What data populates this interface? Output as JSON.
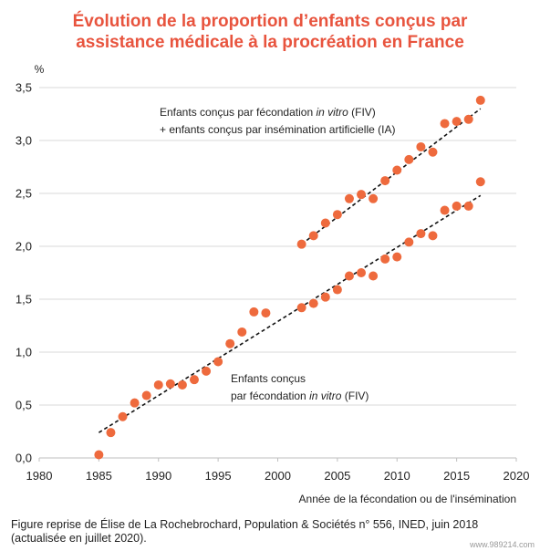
{
  "title_line1": "Évolution de la proportion d’enfants conçus par",
  "title_line2": "assistance médicale à la procréation en France",
  "source_line1": "Figure reprise de Élise de La Rochebrochard, Population & Sociétés n° 556, INED, juin 2018",
  "source_line2": "(actualisée en juillet 2020).",
  "watermark": "www.989214.com",
  "colors": {
    "title": "#e8543e",
    "points": "#ee6a3d",
    "trend": "#111111"
  },
  "chart_data": {
    "type": "scatter",
    "title": "Évolution de la proportion d’enfants conçus par assistance médicale à la procréation en France",
    "ylabel": "%",
    "xlabel": "Année de la fécondation ou de l'insémination",
    "xlim": [
      1980,
      2020
    ],
    "ylim": [
      0,
      3.5
    ],
    "xticks": [
      1980,
      1985,
      1990,
      1995,
      2000,
      2005,
      2010,
      2015,
      2020
    ],
    "yticks": [
      "0,0",
      "0,5",
      "1,0",
      "1,5",
      "2,0",
      "2,5",
      "3,0",
      "3,5"
    ],
    "grid": true,
    "series": [
      {
        "label_line1": "Enfants conçus",
        "label_line2_pre": "par fécondation ",
        "label_line2_ital": "in vitro",
        "label_line2_post": " (FIV)",
        "x": [
          1985,
          1986,
          1987,
          1988,
          1989,
          1990,
          1991,
          1992,
          1993,
          1994,
          1995,
          1996,
          1997,
          1998,
          1999,
          2002,
          2003,
          2004,
          2005,
          2006,
          2007,
          2008,
          2009,
          2010,
          2011,
          2012,
          2013,
          2014,
          2015,
          2016,
          2017
        ],
        "y": [
          0.03,
          0.24,
          0.39,
          0.52,
          0.59,
          0.69,
          0.7,
          0.69,
          0.74,
          0.82,
          0.91,
          1.08,
          1.19,
          1.38,
          1.37,
          1.42,
          1.46,
          1.52,
          1.59,
          1.72,
          1.75,
          1.72,
          1.88,
          1.9,
          2.04,
          2.12,
          2.1,
          2.34,
          2.38,
          2.38,
          2.61
        ],
        "trend": [
          [
            1985,
            0.24
          ],
          [
            2017,
            2.48
          ]
        ]
      },
      {
        "label_line1_pre": "Enfants conçus par fécondation ",
        "label_line1_ital": "in vitro",
        "label_line1_post": " (FIV)",
        "label_line2": "+ enfants conçus par insémination artificielle (IA)",
        "x": [
          2002,
          2003,
          2004,
          2005,
          2006,
          2007,
          2008,
          2009,
          2010,
          2011,
          2012,
          2013,
          2014,
          2015,
          2016,
          2017
        ],
        "y": [
          2.02,
          2.1,
          2.22,
          2.3,
          2.45,
          2.49,
          2.45,
          2.62,
          2.72,
          2.82,
          2.94,
          2.89,
          3.16,
          3.18,
          3.2,
          3.38
        ],
        "trend": [
          [
            2002,
            2.02
          ],
          [
            2017,
            3.3
          ]
        ]
      }
    ]
  }
}
